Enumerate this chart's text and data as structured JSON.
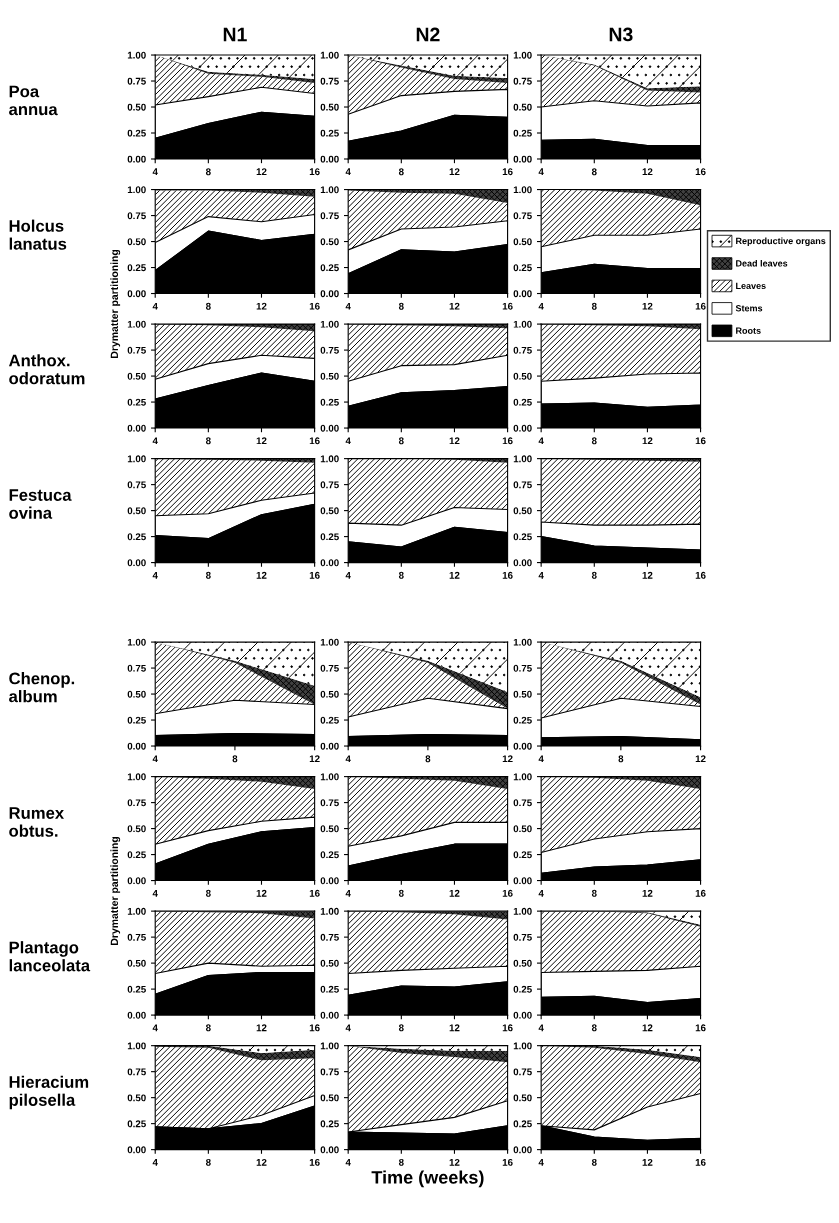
{
  "chart_data": [
    {
      "type": "area",
      "stacked": true,
      "title": "N1",
      "legend": "right",
      "annotations": [
        "Poa annua"
      ],
      "x": [
        4,
        8,
        12,
        16
      ],
      "xlim": [
        4,
        16
      ],
      "xticks": [
        4,
        8,
        12,
        16
      ],
      "ylim": [
        0,
        1
      ],
      "yticks": [
        {
          "value": 0,
          "label": "0.00"
        },
        {
          "value": 0.25,
          "label": "0.25"
        },
        {
          "value": 0.5,
          "label": "0.50"
        },
        {
          "value": 0.75,
          "label": "0.75"
        },
        {
          "value": 1,
          "label": "1.00"
        }
      ],
      "series": [
        {
          "name": "Roots",
          "color": "#000000",
          "values": [
            0.2,
            0.34,
            0.45,
            0.41
          ]
        },
        {
          "name": "Stems",
          "color": "#ffffff",
          "values": [
            0.32,
            0.26,
            0.24,
            0.22
          ]
        },
        {
          "name": "Leaves",
          "color": "#ffffff",
          "values": [
            0.48,
            0.22,
            0.1,
            0.1
          ]
        },
        {
          "name": "Dead leaves",
          "color": "#404040",
          "values": [
            0,
            0.02,
            0.02,
            0.04
          ]
        },
        {
          "name": "Reproductive organs",
          "color": "#ffffff",
          "values": [
            0,
            0.16,
            0.19,
            0.23
          ]
        }
      ]
    },
    {
      "type": "area",
      "stacked": true,
      "title": "N2",
      "x": [
        4,
        8,
        12,
        16
      ],
      "xlim": [
        4,
        16
      ],
      "xticks": [
        4,
        8,
        12,
        16
      ],
      "ylim": [
        0,
        1
      ],
      "yticks": [
        {
          "value": 0,
          "label": "0.00"
        },
        {
          "value": 0.25,
          "label": "0.25"
        },
        {
          "value": 0.5,
          "label": "0.50"
        },
        {
          "value": 0.75,
          "label": "0.75"
        },
        {
          "value": 1,
          "label": "1.00"
        }
      ],
      "series": [
        {
          "color": "#000000",
          "values": [
            0.17,
            0.27,
            0.42,
            0.4
          ]
        },
        {
          "color": "#ffffff",
          "values": [
            0.26,
            0.34,
            0.23,
            0.27
          ]
        },
        {
          "color": "#ffffff",
          "values": [
            0.57,
            0.27,
            0.12,
            0.06
          ]
        },
        {
          "color": "#404040",
          "values": [
            0,
            0.02,
            0.03,
            0.05
          ]
        },
        {
          "color": "#ffffff",
          "values": [
            0,
            0.1,
            0.2,
            0.22
          ]
        }
      ]
    },
    {
      "type": "area",
      "stacked": true,
      "title": "N3",
      "x": [
        4,
        8,
        12,
        16
      ],
      "xlim": [
        4,
        16
      ],
      "xticks": [
        4,
        8,
        12,
        16
      ],
      "ylim": [
        0,
        1
      ],
      "yticks": [
        {
          "value": 0,
          "label": "0.00"
        },
        {
          "value": 0.25,
          "label": "0.25"
        },
        {
          "value": 0.5,
          "label": "0.50"
        },
        {
          "value": 0.75,
          "label": "0.75"
        },
        {
          "value": 1,
          "label": "1.00"
        }
      ],
      "series": [
        {
          "color": "#000000",
          "values": [
            0.18,
            0.19,
            0.13,
            0.13
          ]
        },
        {
          "color": "#ffffff",
          "values": [
            0.32,
            0.37,
            0.38,
            0.41
          ]
        },
        {
          "color": "#ffffff",
          "values": [
            0.5,
            0.34,
            0.15,
            0.1
          ]
        },
        {
          "color": "#404040",
          "values": [
            0,
            0.01,
            0.02,
            0.06
          ]
        },
        {
          "color": "#ffffff",
          "values": [
            0,
            0.09,
            0.32,
            0.3
          ]
        }
      ]
    },
    {
      "type": "area",
      "stacked": true,
      "annotations": [
        "Holcus lanatus"
      ],
      "ylabel": "Drymatter partitioning",
      "x": [
        4,
        8,
        12,
        16
      ],
      "xlim": [
        4,
        16
      ],
      "xticks": [
        4,
        8,
        12,
        16
      ],
      "ylim": [
        0,
        1
      ],
      "yticks": [
        {
          "value": 0,
          "label": "0.00"
        },
        {
          "value": 0.25,
          "label": "0.25"
        },
        {
          "value": 0.5,
          "label": "0.50"
        },
        {
          "value": 0.75,
          "label": "0.75"
        },
        {
          "value": 1,
          "label": "1.00"
        }
      ],
      "series": [
        {
          "color": "#000000",
          "values": [
            0.22,
            0.6,
            0.51,
            0.57
          ]
        },
        {
          "color": "#ffffff",
          "values": [
            0.27,
            0.14,
            0.18,
            0.19
          ]
        },
        {
          "color": "#ffffff",
          "values": [
            0.5,
            0.25,
            0.28,
            0.17
          ]
        },
        {
          "color": "#404040",
          "values": [
            0.01,
            0.01,
            0.03,
            0.07
          ]
        }
      ]
    },
    {
      "type": "area",
      "stacked": true,
      "x": [
        4,
        8,
        12,
        16
      ],
      "xlim": [
        4,
        16
      ],
      "xticks": [
        4,
        8,
        12,
        16
      ],
      "ylim": [
        0,
        1
      ],
      "yticks": [
        {
          "value": 0,
          "label": "0.00"
        },
        {
          "value": 0.25,
          "label": "0.25"
        },
        {
          "value": 0.5,
          "label": "0.50"
        },
        {
          "value": 0.75,
          "label": "0.75"
        },
        {
          "value": 1,
          "label": "1.00"
        }
      ],
      "series": [
        {
          "color": "#000000",
          "values": [
            0.19,
            0.42,
            0.4,
            0.47
          ]
        },
        {
          "color": "#ffffff",
          "values": [
            0.23,
            0.2,
            0.24,
            0.23
          ]
        },
        {
          "color": "#ffffff",
          "values": [
            0.57,
            0.35,
            0.32,
            0.17
          ]
        },
        {
          "color": "#404040",
          "values": [
            0.01,
            0.03,
            0.04,
            0.13
          ]
        }
      ]
    },
    {
      "type": "area",
      "stacked": true,
      "x": [
        4,
        8,
        12,
        16
      ],
      "xlim": [
        4,
        16
      ],
      "xticks": [
        4,
        8,
        12,
        16
      ],
      "ylim": [
        0,
        1
      ],
      "yticks": [
        {
          "value": 0,
          "label": "0.00"
        },
        {
          "value": 0.25,
          "label": "0.25"
        },
        {
          "value": 0.5,
          "label": "0.50"
        },
        {
          "value": 0.75,
          "label": "0.75"
        },
        {
          "value": 1,
          "label": "1.00"
        }
      ],
      "series": [
        {
          "color": "#000000",
          "values": [
            0.2,
            0.28,
            0.24,
            0.24
          ]
        },
        {
          "color": "#ffffff",
          "values": [
            0.25,
            0.28,
            0.32,
            0.38
          ]
        },
        {
          "color": "#ffffff",
          "values": [
            0.55,
            0.43,
            0.4,
            0.23
          ]
        },
        {
          "color": "#404040",
          "values": [
            0,
            0.01,
            0.04,
            0.15
          ]
        }
      ]
    },
    {
      "type": "area",
      "stacked": true,
      "annotations": [
        "Anthox. odoratum"
      ],
      "x": [
        4,
        8,
        12,
        16
      ],
      "xlim": [
        4,
        16
      ],
      "xticks": [
        4,
        8,
        12,
        16
      ],
      "ylim": [
        0,
        1
      ],
      "yticks": [
        {
          "value": 0,
          "label": "0.00"
        },
        {
          "value": 0.25,
          "label": "0.25"
        },
        {
          "value": 0.5,
          "label": "0.50"
        },
        {
          "value": 0.75,
          "label": "0.75"
        },
        {
          "value": 1,
          "label": "1.00"
        }
      ],
      "series": [
        {
          "color": "#000000",
          "values": [
            0.28,
            0.41,
            0.53,
            0.45
          ]
        },
        {
          "color": "#ffffff",
          "values": [
            0.19,
            0.21,
            0.17,
            0.22
          ]
        },
        {
          "color": "#ffffff",
          "values": [
            0.53,
            0.37,
            0.27,
            0.26
          ]
        },
        {
          "color": "#404040",
          "values": [
            0,
            0.01,
            0.03,
            0.07
          ]
        }
      ]
    },
    {
      "type": "area",
      "stacked": true,
      "x": [
        4,
        8,
        12,
        16
      ],
      "xlim": [
        4,
        16
      ],
      "xticks": [
        4,
        8,
        12,
        16
      ],
      "ylim": [
        0,
        1
      ],
      "yticks": [
        {
          "value": 0,
          "label": "0.00"
        },
        {
          "value": 0.25,
          "label": "0.25"
        },
        {
          "value": 0.5,
          "label": "0.50"
        },
        {
          "value": 0.75,
          "label": "0.75"
        },
        {
          "value": 1,
          "label": "1.00"
        }
      ],
      "series": [
        {
          "color": "#000000",
          "values": [
            0.21,
            0.34,
            0.36,
            0.4
          ]
        },
        {
          "color": "#ffffff",
          "values": [
            0.24,
            0.26,
            0.25,
            0.3
          ]
        },
        {
          "color": "#ffffff",
          "values": [
            0.55,
            0.39,
            0.37,
            0.26
          ]
        },
        {
          "color": "#404040",
          "values": [
            0,
            0.01,
            0.02,
            0.04
          ]
        }
      ]
    },
    {
      "type": "area",
      "stacked": true,
      "x": [
        4,
        8,
        12,
        16
      ],
      "xlim": [
        4,
        16
      ],
      "xticks": [
        4,
        8,
        12,
        16
      ],
      "ylim": [
        0,
        1
      ],
      "yticks": [
        {
          "value": 0,
          "label": "0.00"
        },
        {
          "value": 0.25,
          "label": "0.25"
        },
        {
          "value": 0.5,
          "label": "0.50"
        },
        {
          "value": 0.75,
          "label": "0.75"
        },
        {
          "value": 1,
          "label": "1.00"
        }
      ],
      "series": [
        {
          "color": "#000000",
          "values": [
            0.23,
            0.24,
            0.2,
            0.22
          ]
        },
        {
          "color": "#ffffff",
          "values": [
            0.22,
            0.24,
            0.32,
            0.31
          ]
        },
        {
          "color": "#ffffff",
          "values": [
            0.55,
            0.51,
            0.46,
            0.42
          ]
        },
        {
          "color": "#404040",
          "values": [
            0,
            0.01,
            0.02,
            0.05
          ]
        }
      ]
    },
    {
      "type": "area",
      "stacked": true,
      "annotations": [
        "Festuca ovina"
      ],
      "x": [
        4,
        8,
        12,
        16
      ],
      "xlim": [
        4,
        16
      ],
      "xticks": [
        4,
        8,
        12,
        16
      ],
      "ylim": [
        0,
        1
      ],
      "yticks": [
        {
          "value": 0,
          "label": "0.00"
        },
        {
          "value": 0.25,
          "label": "0.25"
        },
        {
          "value": 0.5,
          "label": "0.50"
        },
        {
          "value": 0.75,
          "label": "0.75"
        },
        {
          "value": 1,
          "label": "1.00"
        }
      ],
      "series": [
        {
          "color": "#000000",
          "values": [
            0.26,
            0.23,
            0.46,
            0.56
          ]
        },
        {
          "color": "#ffffff",
          "values": [
            0.19,
            0.24,
            0.14,
            0.11
          ]
        },
        {
          "color": "#ffffff",
          "values": [
            0.55,
            0.52,
            0.38,
            0.29
          ]
        },
        {
          "color": "#404040",
          "values": [
            0,
            0.01,
            0.02,
            0.04
          ]
        }
      ]
    },
    {
      "type": "area",
      "stacked": true,
      "x": [
        4,
        8,
        12,
        16
      ],
      "xlim": [
        4,
        16
      ],
      "xticks": [
        4,
        8,
        12,
        16
      ],
      "ylim": [
        0,
        1
      ],
      "yticks": [
        {
          "value": 0,
          "label": "0.00"
        },
        {
          "value": 0.25,
          "label": "0.25"
        },
        {
          "value": 0.5,
          "label": "0.50"
        },
        {
          "value": 0.75,
          "label": "0.75"
        },
        {
          "value": 1,
          "label": "1.00"
        }
      ],
      "series": [
        {
          "color": "#000000",
          "values": [
            0.2,
            0.15,
            0.34,
            0.29
          ]
        },
        {
          "color": "#ffffff",
          "values": [
            0.18,
            0.21,
            0.19,
            0.22
          ]
        },
        {
          "color": "#ffffff",
          "values": [
            0.62,
            0.64,
            0.46,
            0.45
          ]
        },
        {
          "color": "#404040",
          "values": [
            0,
            0,
            0.01,
            0.04
          ]
        }
      ]
    },
    {
      "type": "area",
      "stacked": true,
      "x": [
        4,
        8,
        12,
        16
      ],
      "xlim": [
        4,
        16
      ],
      "xticks": [
        4,
        8,
        12,
        16
      ],
      "ylim": [
        0,
        1
      ],
      "yticks": [
        {
          "value": 0,
          "label": "0.00"
        },
        {
          "value": 0.25,
          "label": "0.25"
        },
        {
          "value": 0.5,
          "label": "0.50"
        },
        {
          "value": 0.75,
          "label": "0.75"
        },
        {
          "value": 1,
          "label": "1.00"
        }
      ],
      "series": [
        {
          "color": "#000000",
          "values": [
            0.25,
            0.16,
            0.14,
            0.12
          ]
        },
        {
          "color": "#ffffff",
          "values": [
            0.14,
            0.2,
            0.22,
            0.25
          ]
        },
        {
          "color": "#ffffff",
          "values": [
            0.61,
            0.63,
            0.62,
            0.6
          ]
        },
        {
          "color": "#404040",
          "values": [
            0,
            0.01,
            0.02,
            0.03
          ]
        }
      ]
    },
    {
      "type": "area",
      "stacked": true,
      "annotations": [
        "Chenop. album"
      ],
      "x": [
        4,
        8,
        12
      ],
      "xlim": [
        4,
        12
      ],
      "xticks": [
        4,
        8,
        12
      ],
      "ylim": [
        0,
        1
      ],
      "yticks": [
        {
          "value": 0,
          "label": "0.00"
        },
        {
          "value": 0.25,
          "label": "0.25"
        },
        {
          "value": 0.5,
          "label": "0.50"
        },
        {
          "value": 0.75,
          "label": "0.75"
        },
        {
          "value": 1,
          "label": "1.00"
        }
      ],
      "series": [
        {
          "color": "#000000",
          "values": [
            0.1,
            0.12,
            0.11
          ]
        },
        {
          "color": "#ffffff",
          "values": [
            0.21,
            0.32,
            0.29
          ]
        },
        {
          "color": "#ffffff",
          "values": [
            0.69,
            0.36,
            0
          ]
        },
        {
          "color": "#404040",
          "values": [
            0,
            0.02,
            0.18
          ]
        },
        {
          "color": "#ffffff",
          "values": [
            0,
            0.18,
            0.42
          ]
        }
      ]
    },
    {
      "type": "area",
      "stacked": true,
      "x": [
        4,
        8,
        12
      ],
      "xlim": [
        4,
        12
      ],
      "xticks": [
        4,
        8,
        12
      ],
      "ylim": [
        0,
        1
      ],
      "yticks": [
        {
          "value": 0,
          "label": "0.00"
        },
        {
          "value": 0.25,
          "label": "0.25"
        },
        {
          "value": 0.5,
          "label": "0.50"
        },
        {
          "value": 0.75,
          "label": "0.75"
        },
        {
          "value": 1,
          "label": "1.00"
        }
      ],
      "series": [
        {
          "color": "#000000",
          "values": [
            0.09,
            0.11,
            0.1
          ]
        },
        {
          "color": "#ffffff",
          "values": [
            0.19,
            0.35,
            0.26
          ]
        },
        {
          "color": "#ffffff",
          "values": [
            0.72,
            0.34,
            0
          ]
        },
        {
          "color": "#404040",
          "values": [
            0,
            0.02,
            0.16
          ]
        },
        {
          "color": "#ffffff",
          "values": [
            0,
            0.18,
            0.48
          ]
        }
      ]
    },
    {
      "type": "area",
      "stacked": true,
      "x": [
        4,
        8,
        12
      ],
      "xlim": [
        4,
        12
      ],
      "xticks": [
        4,
        8,
        12
      ],
      "ylim": [
        0,
        1
      ],
      "yticks": [
        {
          "value": 0,
          "label": "0.00"
        },
        {
          "value": 0.25,
          "label": "0.25"
        },
        {
          "value": 0.5,
          "label": "0.50"
        },
        {
          "value": 0.75,
          "label": "0.75"
        },
        {
          "value": 1,
          "label": "1.00"
        }
      ],
      "series": [
        {
          "color": "#000000",
          "values": [
            0.08,
            0.09,
            0.06
          ]
        },
        {
          "color": "#ffffff",
          "values": [
            0.19,
            0.37,
            0.32
          ]
        },
        {
          "color": "#ffffff",
          "values": [
            0.73,
            0.34,
            0.02
          ]
        },
        {
          "color": "#404040",
          "values": [
            0,
            0.02,
            0.07
          ]
        },
        {
          "color": "#ffffff",
          "values": [
            0,
            0.18,
            0.53
          ]
        }
      ]
    },
    {
      "type": "area",
      "stacked": true,
      "annotations": [
        "Rumex obtus."
      ],
      "ylabel": "Drymatter partitioning",
      "x": [
        4,
        8,
        12,
        16
      ],
      "xlim": [
        4,
        16
      ],
      "xticks": [
        4,
        8,
        12,
        16
      ],
      "ylim": [
        0,
        1
      ],
      "yticks": [
        {
          "value": 0,
          "label": "0.00"
        },
        {
          "value": 0.25,
          "label": "0.25"
        },
        {
          "value": 0.5,
          "label": "0.50"
        },
        {
          "value": 0.75,
          "label": "0.75"
        },
        {
          "value": 1,
          "label": "1.00"
        }
      ],
      "series": [
        {
          "color": "#000000",
          "values": [
            0.16,
            0.35,
            0.47,
            0.51
          ]
        },
        {
          "color": "#ffffff",
          "values": [
            0.19,
            0.13,
            0.1,
            0.1
          ]
        },
        {
          "color": "#ffffff",
          "values": [
            0.65,
            0.5,
            0.38,
            0.27
          ]
        },
        {
          "color": "#404040",
          "values": [
            0,
            0.02,
            0.05,
            0.12
          ]
        }
      ]
    },
    {
      "type": "area",
      "stacked": true,
      "x": [
        4,
        8,
        12,
        16
      ],
      "xlim": [
        4,
        16
      ],
      "xticks": [
        4,
        8,
        12,
        16
      ],
      "ylim": [
        0,
        1
      ],
      "yticks": [
        {
          "value": 0,
          "label": "0.00"
        },
        {
          "value": 0.25,
          "label": "0.25"
        },
        {
          "value": 0.5,
          "label": "0.50"
        },
        {
          "value": 0.75,
          "label": "0.75"
        },
        {
          "value": 1,
          "label": "1.00"
        }
      ],
      "series": [
        {
          "color": "#000000",
          "values": [
            0.14,
            0.25,
            0.35,
            0.35
          ]
        },
        {
          "color": "#ffffff",
          "values": [
            0.19,
            0.18,
            0.21,
            0.21
          ]
        },
        {
          "color": "#ffffff",
          "values": [
            0.67,
            0.55,
            0.4,
            0.32
          ]
        },
        {
          "color": "#404040",
          "values": [
            0,
            0.02,
            0.04,
            0.12
          ]
        }
      ]
    },
    {
      "type": "area",
      "stacked": true,
      "x": [
        4,
        8,
        12,
        16
      ],
      "xlim": [
        4,
        16
      ],
      "xticks": [
        4,
        8,
        12,
        16
      ],
      "ylim": [
        0,
        1
      ],
      "yticks": [
        {
          "value": 0,
          "label": "0.00"
        },
        {
          "value": 0.25,
          "label": "0.25"
        },
        {
          "value": 0.5,
          "label": "0.50"
        },
        {
          "value": 0.75,
          "label": "0.75"
        },
        {
          "value": 1,
          "label": "1.00"
        }
      ],
      "series": [
        {
          "color": "#000000",
          "values": [
            0.07,
            0.13,
            0.15,
            0.2
          ]
        },
        {
          "color": "#ffffff",
          "values": [
            0.2,
            0.27,
            0.32,
            0.3
          ]
        },
        {
          "color": "#ffffff",
          "values": [
            0.73,
            0.59,
            0.49,
            0.38
          ]
        },
        {
          "color": "#404040",
          "values": [
            0,
            0.01,
            0.04,
            0.12
          ]
        }
      ]
    },
    {
      "type": "area",
      "stacked": true,
      "annotations": [
        "Plantago lanceolata"
      ],
      "x": [
        4,
        8,
        12,
        16
      ],
      "xlim": [
        4,
        16
      ],
      "xticks": [
        4,
        8,
        12,
        16
      ],
      "ylim": [
        0,
        1
      ],
      "yticks": [
        {
          "value": 0,
          "label": "0.00"
        },
        {
          "value": 0.25,
          "label": "0.25"
        },
        {
          "value": 0.5,
          "label": "0.50"
        },
        {
          "value": 0.75,
          "label": "0.75"
        },
        {
          "value": 1,
          "label": "1.00"
        }
      ],
      "series": [
        {
          "color": "#000000",
          "values": [
            0.2,
            0.38,
            0.41,
            0.41
          ]
        },
        {
          "color": "#ffffff",
          "values": [
            0.2,
            0.12,
            0.06,
            0.07
          ]
        },
        {
          "color": "#ffffff",
          "values": [
            0.6,
            0.49,
            0.51,
            0.45
          ]
        },
        {
          "color": "#404040",
          "values": [
            0,
            0.01,
            0.02,
            0.07
          ]
        }
      ]
    },
    {
      "type": "area",
      "stacked": true,
      "x": [
        4,
        8,
        12,
        16
      ],
      "xlim": [
        4,
        16
      ],
      "xticks": [
        4,
        8,
        12,
        16
      ],
      "ylim": [
        0,
        1
      ],
      "yticks": [
        {
          "value": 0,
          "label": "0.00"
        },
        {
          "value": 0.25,
          "label": "0.25"
        },
        {
          "value": 0.5,
          "label": "0.50"
        },
        {
          "value": 0.75,
          "label": "0.75"
        },
        {
          "value": 1,
          "label": "1.00"
        }
      ],
      "series": [
        {
          "color": "#000000",
          "values": [
            0.19,
            0.28,
            0.27,
            0.32
          ]
        },
        {
          "color": "#ffffff",
          "values": [
            0.21,
            0.15,
            0.18,
            0.15
          ]
        },
        {
          "color": "#ffffff",
          "values": [
            0.6,
            0.56,
            0.52,
            0.45
          ]
        },
        {
          "color": "#404040",
          "values": [
            0,
            0.01,
            0.03,
            0.08
          ]
        }
      ]
    },
    {
      "type": "area",
      "stacked": true,
      "x": [
        4,
        8,
        12,
        16
      ],
      "xlim": [
        4,
        16
      ],
      "xticks": [
        4,
        8,
        12,
        16
      ],
      "ylim": [
        0,
        1
      ],
      "yticks": [
        {
          "value": 0,
          "label": "0.00"
        },
        {
          "value": 0.25,
          "label": "0.25"
        },
        {
          "value": 0.5,
          "label": "0.50"
        },
        {
          "value": 0.75,
          "label": "0.75"
        },
        {
          "value": 1,
          "label": "1.00"
        }
      ],
      "series": [
        {
          "color": "#000000",
          "values": [
            0.17,
            0.18,
            0.12,
            0.16
          ]
        },
        {
          "color": "#ffffff",
          "values": [
            0.24,
            0.24,
            0.31,
            0.31
          ]
        },
        {
          "color": "#ffffff",
          "values": [
            0.59,
            0.58,
            0.55,
            0.38
          ]
        },
        {
          "color": "#404040",
          "values": [
            0,
            0,
            0.01,
            0.02
          ]
        },
        {
          "color": "#ffffff",
          "values": [
            0,
            0,
            0.01,
            0.13
          ]
        }
      ]
    },
    {
      "type": "area",
      "stacked": true,
      "annotations": [
        "Hieracium pilosella"
      ],
      "x": [
        4,
        8,
        12,
        16
      ],
      "xlim": [
        4,
        16
      ],
      "xticks": [
        4,
        8,
        12,
        16
      ],
      "ylim": [
        0,
        1
      ],
      "yticks": [
        {
          "value": 0,
          "label": "0.00"
        },
        {
          "value": 0.25,
          "label": "0.25"
        },
        {
          "value": 0.5,
          "label": "0.50"
        },
        {
          "value": 0.75,
          "label": "0.75"
        },
        {
          "value": 1,
          "label": "1.00"
        }
      ],
      "series": [
        {
          "color": "#000000",
          "values": [
            0.22,
            0.2,
            0.25,
            0.42
          ]
        },
        {
          "color": "#ffffff",
          "values": [
            0,
            0,
            0.08,
            0.1
          ]
        },
        {
          "color": "#ffffff",
          "values": [
            0.77,
            0.78,
            0.53,
            0.36
          ]
        },
        {
          "color": "#404040",
          "values": [
            0.01,
            0.02,
            0.07,
            0.08
          ]
        },
        {
          "color": "#ffffff",
          "values": [
            0,
            0,
            0.07,
            0.04
          ]
        }
      ]
    },
    {
      "type": "area",
      "stacked": true,
      "xlabel": "Time (weeks)",
      "x": [
        4,
        8,
        12,
        16
      ],
      "xlim": [
        4,
        16
      ],
      "xticks": [
        4,
        8,
        12,
        16
      ],
      "ylim": [
        0,
        1
      ],
      "yticks": [
        {
          "value": 0,
          "label": "0.00"
        },
        {
          "value": 0.25,
          "label": "0.25"
        },
        {
          "value": 0.5,
          "label": "0.50"
        },
        {
          "value": 0.75,
          "label": "0.75"
        },
        {
          "value": 1,
          "label": "1.00"
        }
      ],
      "series": [
        {
          "color": "#000000",
          "values": [
            0.17,
            0.16,
            0.15,
            0.23
          ]
        },
        {
          "color": "#ffffff",
          "values": [
            0,
            0.08,
            0.16,
            0.24
          ]
        },
        {
          "color": "#ffffff",
          "values": [
            0.83,
            0.69,
            0.58,
            0.37
          ]
        },
        {
          "color": "#404040",
          "values": [
            0,
            0.04,
            0.06,
            0.11
          ]
        },
        {
          "color": "#ffffff",
          "values": [
            0,
            0.03,
            0.05,
            0.05
          ]
        }
      ]
    },
    {
      "type": "area",
      "stacked": true,
      "x": [
        4,
        8,
        12,
        16
      ],
      "xlim": [
        4,
        16
      ],
      "xticks": [
        4,
        8,
        12,
        16
      ],
      "ylim": [
        0,
        1
      ],
      "yticks": [
        {
          "value": 0,
          "label": "0.00"
        },
        {
          "value": 0.25,
          "label": "0.25"
        },
        {
          "value": 0.5,
          "label": "0.50"
        },
        {
          "value": 0.75,
          "label": "0.75"
        },
        {
          "value": 1,
          "label": "1.00"
        }
      ],
      "series": [
        {
          "color": "#000000",
          "values": [
            0.23,
            0.12,
            0.09,
            0.11
          ]
        },
        {
          "color": "#ffffff",
          "values": [
            0,
            0.07,
            0.32,
            0.43
          ]
        },
        {
          "color": "#ffffff",
          "values": [
            0.77,
            0.79,
            0.51,
            0.3
          ]
        },
        {
          "color": "#404040",
          "values": [
            0,
            0.02,
            0.04,
            0.05
          ]
        },
        {
          "color": "#ffffff",
          "values": [
            0,
            0,
            0.04,
            0.11
          ]
        }
      ]
    }
  ]
}
